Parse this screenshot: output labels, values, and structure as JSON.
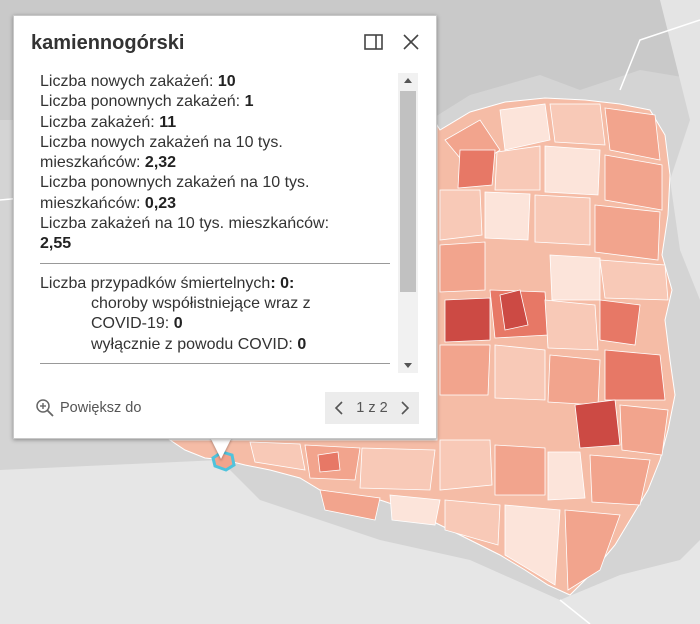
{
  "popup": {
    "title": "kamiennogórski",
    "dock_icon": "dock-icon",
    "close_icon": "close-icon",
    "fields": {
      "new_cases": {
        "label": "Liczba nowych zakażeń: ",
        "value": "10"
      },
      "repeat_cases": {
        "label": "Liczba ponownych zakażeń: ",
        "value": "1"
      },
      "total_cases": {
        "label": "Liczba zakażeń: ",
        "value": "11"
      },
      "new_per10k": {
        "label_line1": "Liczba nowych zakażeń na 10 tys.",
        "label_line2": "mieszkańców: ",
        "value": "2,32"
      },
      "repeat_per10k": {
        "label_line1": "Liczba ponownych zakażeń na 10 tys.",
        "label_line2": "mieszkańców: ",
        "value": "0,23"
      },
      "total_per10k": {
        "label": "Liczba zakażeń na 10 tys. mieszkańców:",
        "value": "2,55"
      },
      "deaths": {
        "label": "Liczba przypadków śmiertelnych",
        "value": ": 0:"
      },
      "deaths_comorbid": {
        "label_line1": "choroby współistniejące wraz z",
        "label_line2": "COVID-19: ",
        "value": "0"
      },
      "deaths_covid_only": {
        "label": "wyłącznie z powodu COVID: ",
        "value": "0"
      }
    },
    "footer": {
      "zoom_label": "Powiększ do",
      "zoom_icon": "zoom-in-icon",
      "pager_text": "1 z 2",
      "prev_icon": "chevron-left-icon",
      "next_icon": "chevron-right-icon"
    }
  },
  "map": {
    "background_color": "#d4d4d4",
    "land_color": "#e9e9e9",
    "choropleth_colors": [
      "#fce4da",
      "#f8c9b7",
      "#f2a48d",
      "#e77866",
      "#cc4a44"
    ],
    "highlight_color": "#4fc3dc"
  }
}
